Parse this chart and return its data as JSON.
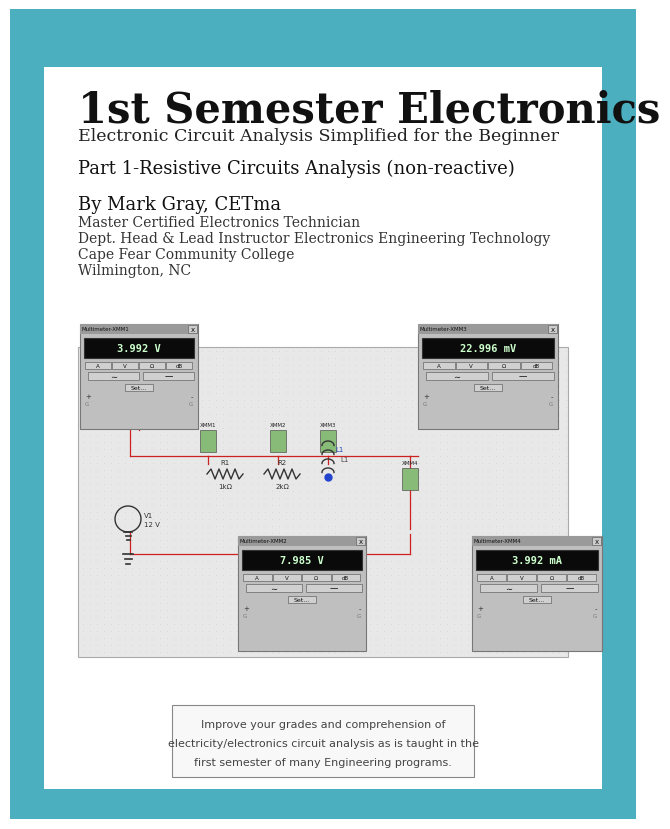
{
  "bg_color": "#ffffff",
  "teal_color": "#4BAFC0",
  "title": "1st Semester Electronics",
  "subtitle": "Electronic Circuit Analysis Simplified for the Beginner",
  "part_title": "Part 1-Resistive Circuits Analysis (non-reactive)",
  "author_name": "By Mark Gray, CETma",
  "author_lines": [
    "Master Certified Electronics Technician",
    "Dept. Head & Lead Instructor Electronics Engineering Technology",
    "Cape Fear Community College",
    "Wilmington, NC"
  ],
  "bottom_text_lines": [
    "Improve your grades and comprehension of",
    "electricity/electronics circuit analysis as is taught in the",
    "first semester of many Engineering programs."
  ],
  "wire_color": "#cc2222",
  "mm_readings": [
    "3.992 V",
    "22.996 mV",
    "7.985 V",
    "3.992 mA"
  ],
  "mm_titles": [
    "Multimeter-XMM1",
    "Multimeter-XMM3",
    "Multimeter-XMM2",
    "Multimeter-XMM4"
  ]
}
